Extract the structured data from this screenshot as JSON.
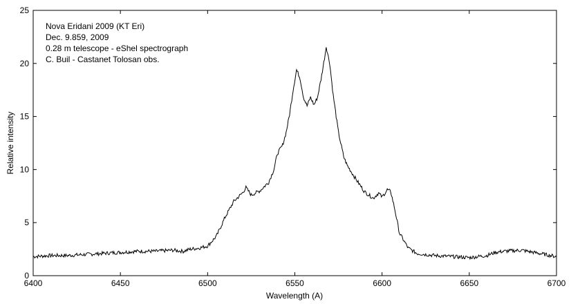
{
  "chart_data": {
    "type": "line",
    "xlabel": "Wavelength (A)",
    "ylabel": "Relative intensity",
    "xlim": [
      6400,
      6700
    ],
    "ylim": [
      0,
      25
    ],
    "xticks": [
      "6400",
      "6450",
      "6500",
      "6550",
      "6600",
      "6650",
      "6700"
    ],
    "yticks": [
      "0",
      "5",
      "10",
      "15",
      "20",
      "25"
    ],
    "grid": false,
    "annotations": [
      "Nova Eridani 2009 (KT Eri)",
      "Dec. 9.859, 2009",
      "0.28 m telescope - eShel spectrograph",
      "C. Buil - Castanet Tolosan obs."
    ],
    "series": [
      {
        "color": "#000000",
        "x": [
          6400,
          6410,
          6420,
          6430,
          6440,
          6450,
          6460,
          6470,
          6480,
          6486,
          6490,
          6495,
          6500,
          6505,
          6510,
          6515,
          6520,
          6522,
          6525,
          6530,
          6535,
          6538,
          6540,
          6543,
          6545,
          6547,
          6549,
          6551,
          6553,
          6555,
          6557,
          6559,
          6561,
          6563,
          6565,
          6567,
          6568,
          6570,
          6572,
          6575,
          6578,
          6580,
          6585,
          6590,
          6595,
          6598,
          6600,
          6603,
          6605,
          6607,
          6610,
          6615,
          6620,
          6630,
          6640,
          6650,
          6655,
          6660,
          6665,
          6670,
          6680,
          6690,
          6700
        ],
        "y": [
          1.8,
          1.9,
          1.9,
          2.0,
          2.1,
          2.2,
          2.3,
          2.3,
          2.4,
          2.3,
          2.5,
          2.6,
          2.8,
          3.7,
          5.5,
          7.0,
          7.8,
          8.3,
          7.6,
          8.0,
          8.8,
          10.0,
          11.5,
          12.3,
          13.5,
          15.2,
          17.5,
          19.4,
          18.6,
          16.8,
          16.0,
          16.8,
          16.1,
          16.8,
          18.5,
          20.5,
          21.6,
          20.0,
          17.0,
          13.5,
          11.2,
          10.4,
          9.1,
          7.9,
          7.3,
          7.8,
          7.4,
          8.1,
          7.9,
          6.5,
          4.0,
          2.6,
          2.1,
          1.9,
          1.8,
          1.7,
          1.8,
          1.9,
          2.2,
          2.3,
          2.4,
          2.1,
          1.8
        ]
      }
    ]
  }
}
